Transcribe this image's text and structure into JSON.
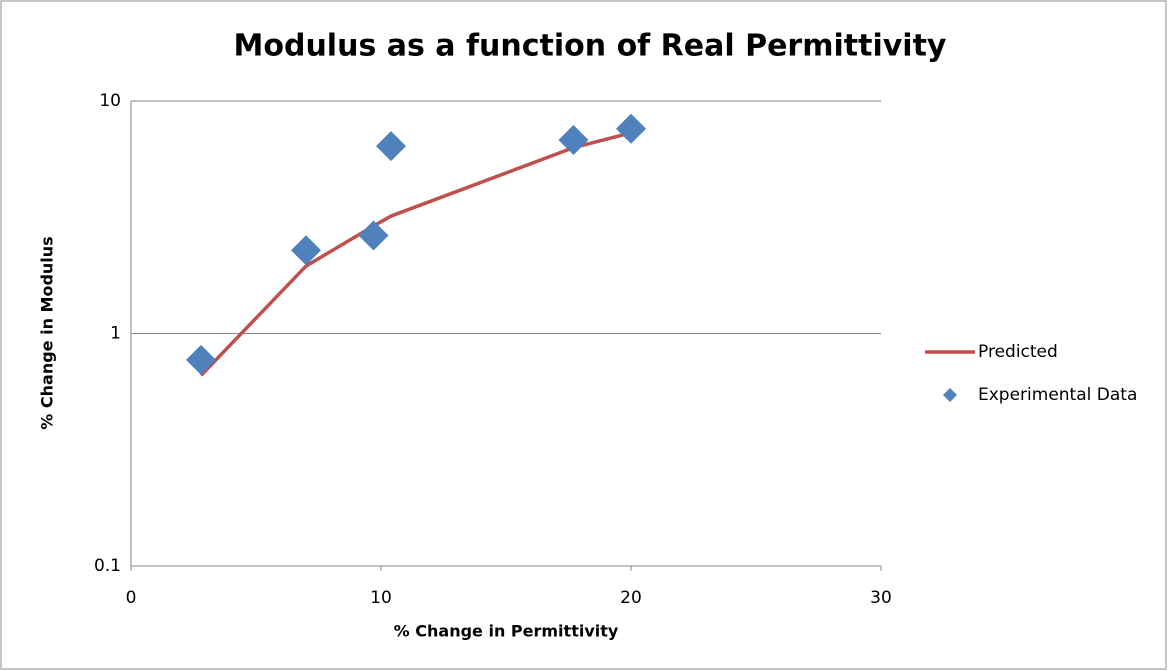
{
  "chart_data": {
    "type": "scatter",
    "title": "Modulus as a function of Real Permittivity",
    "x_label": "% Change in Permittivity",
    "y_label": "% Change in Modulus",
    "x": [
      2.8,
      7.0,
      9.7,
      10.4,
      17.7,
      20.0
    ],
    "series": [
      {
        "name": "Predicted",
        "color": "#c0504d",
        "style": "line",
        "values": [
          0.66,
          1.95,
          2.9,
          3.2,
          6.3,
          7.3
        ]
      },
      {
        "name": "Experimental Data",
        "color": "#4f81bd",
        "style": "marker",
        "values": [
          0.77,
          2.28,
          2.64,
          6.4,
          6.8,
          7.6
        ]
      }
    ],
    "xlim": [
      0,
      30
    ],
    "xticks": [
      0,
      10,
      20,
      30
    ],
    "ylim": [
      0.1,
      10
    ],
    "yticks": [
      0.1,
      1,
      10
    ],
    "y_log": true,
    "grid": true,
    "legend": "right"
  }
}
